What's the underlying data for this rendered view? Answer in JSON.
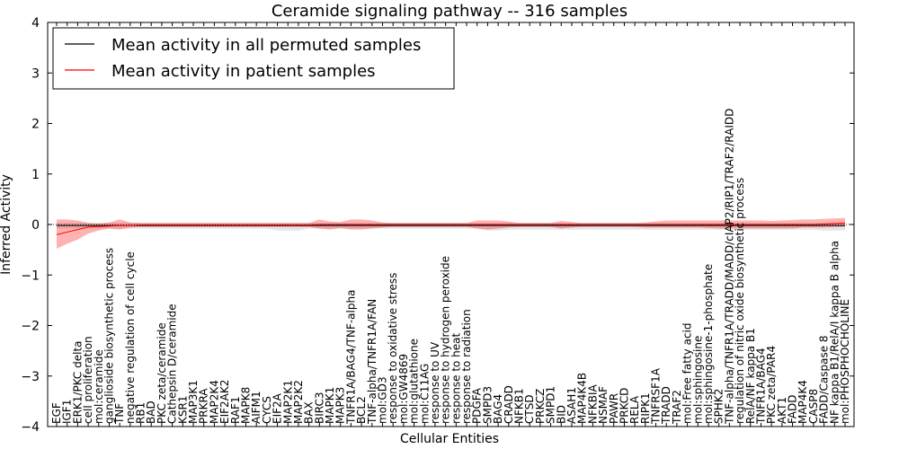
{
  "chart_data": {
    "type": "line",
    "title": "Ceramide signaling pathway -- 316 samples",
    "xlabel": "Cellular Entities",
    "ylabel": "Inferred Activity",
    "ylim": [
      -4,
      4
    ],
    "yticks": [
      -4,
      -3,
      -2,
      -1,
      0,
      1,
      2,
      3,
      4
    ],
    "ytick_labels": [
      "−4",
      "−3",
      "−2",
      "−1",
      "0",
      "1",
      "2",
      "3",
      "4"
    ],
    "grid": false,
    "legend_position": "top-left",
    "legend": [
      {
        "label": "Mean activity in all permuted samples",
        "color": "#000000"
      },
      {
        "label": "Mean activity in patient samples",
        "color": "#ff0000"
      }
    ],
    "categories": [
      "EGF",
      "IGF1",
      "ERK1/PKC delta",
      "cell proliferation",
      "mol:ceramide",
      "ganglioside biosynthetic process",
      "TNF",
      "negative regulation of cell cycle",
      "RB1",
      "BAD",
      "PKC zeta/ceramide",
      "Cathepsin D/ceramide",
      "KSR1",
      "MAP3K1",
      "PRKRA",
      "MAP2K4",
      "EIF2AK2",
      "RAF1",
      "MAPK8",
      "AIFM1",
      "CYCS",
      "EIF2A",
      "MAP2K1",
      "MAP2K2",
      "BAX",
      "BIRC3",
      "MAPK1",
      "MAPK3",
      "TNFR1A/BAG4/TNF-alpha",
      "BCL2",
      "TNF-alpha/TNFR1A/FAN",
      "mol:GD3",
      "response to oxidative stress",
      "mol:GW4869",
      "mol:glutathione",
      "mol:C11AG",
      "response to UV",
      "response to hydrogen peroxide",
      "response to heat",
      "response to radiation",
      "PDGFA",
      "SMPD3",
      "BAG4",
      "CRADD",
      "NFKB1",
      "CTSD",
      "PRKCZ",
      "SMPD1",
      "BID",
      "ASAH1",
      "MAP4K4B",
      "NFKBIA",
      "NSMAF",
      "PAWR",
      "PRKCD",
      "RELA",
      "RIPK1",
      "TNFRSF1A",
      "TRADD",
      "TRAF2",
      "mol:Free fatty acid",
      "mol:sphingosine",
      "mol:sphingosine-1-phosphate",
      "SPHK2",
      "TNF-alpha/TNFR1A/TRADD/MADD/cIAP2/RIP1/TRAF2/RAIDD",
      "regulation of nitric oxide biosynthetic process",
      "RelA/NF kappa B1",
      "TNFR1A/BAG4",
      "PKC zeta/PAR4",
      "AKT1",
      "FADD",
      "MAP4K4",
      "CASP8",
      "FADD/Caspase 8",
      "NF kappa B1/RelA/I kappa B alpha",
      "mol:PHOSPHOCHOLINE"
    ],
    "series": [
      {
        "name": "Mean activity in all permuted samples",
        "color": "#000000",
        "values": [
          -0.02,
          -0.02,
          -0.02,
          -0.02,
          -0.02,
          -0.02,
          -0.02,
          -0.02,
          -0.02,
          -0.02,
          -0.02,
          -0.02,
          -0.02,
          -0.02,
          -0.02,
          -0.02,
          -0.02,
          -0.02,
          -0.02,
          -0.02,
          -0.02,
          -0.02,
          -0.02,
          -0.02,
          -0.02,
          -0.02,
          -0.02,
          -0.02,
          -0.02,
          -0.02,
          -0.02,
          -0.02,
          -0.02,
          -0.02,
          -0.02,
          -0.02,
          -0.02,
          -0.02,
          -0.02,
          -0.02,
          -0.02,
          -0.02,
          -0.02,
          -0.02,
          -0.02,
          -0.02,
          -0.02,
          -0.02,
          -0.02,
          -0.02,
          -0.02,
          -0.02,
          -0.02,
          -0.02,
          -0.02,
          -0.02,
          -0.02,
          -0.02,
          -0.02,
          -0.02,
          -0.02,
          -0.02,
          -0.02,
          -0.02,
          -0.02,
          -0.02,
          -0.02,
          -0.02,
          -0.02,
          -0.02,
          -0.02,
          -0.02,
          -0.02,
          -0.02,
          -0.02,
          -0.02
        ],
        "band_low": [
          -0.08,
          -0.08,
          -0.08,
          -0.08,
          -0.08,
          -0.08,
          -0.08,
          -0.08,
          -0.08,
          -0.08,
          -0.08,
          -0.08,
          -0.08,
          -0.08,
          -0.08,
          -0.08,
          -0.08,
          -0.08,
          -0.08,
          -0.08,
          -0.08,
          -0.12,
          -0.12,
          -0.12,
          -0.08,
          -0.08,
          -0.08,
          -0.08,
          -0.08,
          -0.08,
          -0.08,
          -0.08,
          -0.08,
          -0.08,
          -0.08,
          -0.08,
          -0.08,
          -0.08,
          -0.08,
          -0.08,
          -0.08,
          -0.12,
          -0.12,
          -0.1,
          -0.1,
          -0.1,
          -0.1,
          -0.1,
          -0.1,
          -0.1,
          -0.1,
          -0.1,
          -0.1,
          -0.1,
          -0.1,
          -0.1,
          -0.1,
          -0.1,
          -0.1,
          -0.1,
          -0.1,
          -0.1,
          -0.1,
          -0.1,
          -0.1,
          -0.1,
          -0.1,
          -0.1,
          -0.1,
          -0.1,
          -0.1,
          -0.1,
          -0.1,
          -0.12,
          -0.12,
          -0.12
        ],
        "band_high": [
          0.03,
          0.03,
          0.03,
          0.03,
          0.03,
          0.03,
          0.03,
          0.03,
          0.03,
          0.03,
          0.03,
          0.03,
          0.03,
          0.03,
          0.03,
          0.03,
          0.03,
          0.03,
          0.03,
          0.03,
          0.03,
          0.03,
          0.03,
          0.03,
          0.03,
          0.03,
          0.03,
          0.03,
          0.03,
          0.03,
          0.03,
          0.03,
          0.03,
          0.03,
          0.03,
          0.03,
          0.03,
          0.03,
          0.03,
          0.03,
          0.03,
          0.03,
          0.03,
          0.03,
          0.03,
          0.03,
          0.03,
          0.03,
          0.03,
          0.03,
          0.03,
          0.03,
          0.03,
          0.03,
          0.03,
          0.03,
          0.03,
          0.03,
          0.03,
          0.03,
          0.03,
          0.03,
          0.03,
          0.03,
          0.03,
          0.03,
          0.03,
          0.03,
          0.03,
          0.03,
          0.03,
          0.03,
          0.03,
          0.03,
          0.03,
          0.03
        ]
      },
      {
        "name": "Mean activity in patient samples",
        "color": "#ff0000",
        "values": [
          -0.2,
          -0.15,
          -0.1,
          -0.05,
          -0.04,
          -0.03,
          -0.02,
          -0.02,
          -0.01,
          -0.01,
          -0.01,
          -0.01,
          -0.01,
          -0.01,
          -0.01,
          -0.01,
          -0.01,
          -0.01,
          -0.01,
          -0.01,
          -0.01,
          -0.01,
          -0.01,
          -0.01,
          -0.01,
          0.0,
          0.0,
          0.0,
          0.0,
          0.0,
          0.0,
          0.0,
          0.0,
          0.0,
          0.0,
          0.0,
          0.0,
          0.0,
          0.0,
          0.0,
          0.0,
          0.0,
          0.0,
          0.0,
          0.0,
          0.0,
          0.0,
          0.0,
          0.0,
          0.0,
          0.0,
          0.0,
          0.0,
          0.0,
          0.0,
          0.0,
          0.0,
          0.0,
          0.0,
          0.0,
          0.0,
          0.0,
          0.0,
          0.0,
          0.0,
          0.0,
          0.0,
          0.0,
          0.0,
          0.0,
          0.0,
          0.0,
          0.0,
          0.01,
          0.02,
          0.03
        ],
        "band_low": [
          -0.48,
          -0.38,
          -0.3,
          -0.18,
          -0.12,
          -0.08,
          -0.1,
          -0.06,
          -0.05,
          -0.05,
          -0.05,
          -0.05,
          -0.05,
          -0.05,
          -0.05,
          -0.05,
          -0.05,
          -0.05,
          -0.05,
          -0.05,
          -0.05,
          -0.05,
          -0.05,
          -0.05,
          -0.05,
          -0.08,
          -0.1,
          -0.07,
          -0.1,
          -0.1,
          -0.08,
          -0.06,
          -0.05,
          -0.05,
          -0.05,
          -0.05,
          -0.05,
          -0.05,
          -0.05,
          -0.05,
          -0.08,
          -0.1,
          -0.08,
          -0.06,
          -0.05,
          -0.05,
          -0.05,
          -0.05,
          -0.08,
          -0.06,
          -0.05,
          -0.05,
          -0.05,
          -0.05,
          -0.05,
          -0.05,
          -0.06,
          -0.06,
          -0.06,
          -0.06,
          -0.06,
          -0.06,
          -0.07,
          -0.08,
          -0.08,
          -0.08,
          -0.08,
          -0.08,
          -0.08,
          -0.08,
          -0.08,
          -0.06,
          -0.06,
          -0.06,
          -0.05,
          -0.05
        ],
        "band_high": [
          0.1,
          0.1,
          0.08,
          0.03,
          0.02,
          0.04,
          0.1,
          0.04,
          0.03,
          0.03,
          0.03,
          0.03,
          0.03,
          0.03,
          0.03,
          0.03,
          0.03,
          0.03,
          0.03,
          0.03,
          0.03,
          0.03,
          0.03,
          0.03,
          0.03,
          0.1,
          0.06,
          0.05,
          0.1,
          0.1,
          0.08,
          0.04,
          0.03,
          0.03,
          0.03,
          0.03,
          0.03,
          0.03,
          0.03,
          0.03,
          0.08,
          0.08,
          0.08,
          0.06,
          0.03,
          0.03,
          0.03,
          0.03,
          0.07,
          0.05,
          0.03,
          0.03,
          0.03,
          0.03,
          0.03,
          0.03,
          0.04,
          0.06,
          0.08,
          0.08,
          0.08,
          0.08,
          0.08,
          0.08,
          0.08,
          0.08,
          0.08,
          0.08,
          0.07,
          0.08,
          0.09,
          0.1,
          0.1,
          0.11,
          0.12,
          0.13
        ]
      }
    ]
  }
}
